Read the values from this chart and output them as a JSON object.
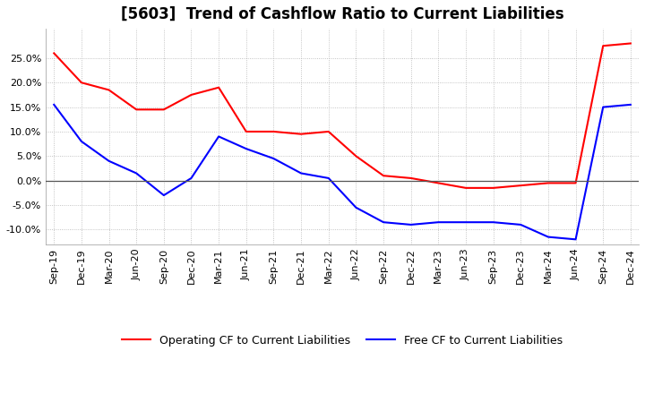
{
  "title": "[5603]  Trend of Cashflow Ratio to Current Liabilities",
  "x_labels": [
    "Sep-19",
    "Dec-19",
    "Mar-20",
    "Jun-20",
    "Sep-20",
    "Dec-20",
    "Mar-21",
    "Jun-21",
    "Sep-21",
    "Dec-21",
    "Mar-22",
    "Jun-22",
    "Sep-22",
    "Dec-22",
    "Mar-23",
    "Jun-23",
    "Sep-23",
    "Dec-23",
    "Mar-24",
    "Jun-24",
    "Sep-24",
    "Dec-24"
  ],
  "operating_cf": [
    26.0,
    20.0,
    18.5,
    14.5,
    14.5,
    17.5,
    19.0,
    10.0,
    10.0,
    9.5,
    10.0,
    5.0,
    1.0,
    0.5,
    -0.5,
    -1.5,
    -1.5,
    -1.0,
    -0.5,
    -0.5,
    27.5,
    28.0
  ],
  "free_cf": [
    15.5,
    8.0,
    4.0,
    1.5,
    -3.0,
    0.5,
    9.0,
    6.5,
    4.5,
    1.5,
    0.5,
    -5.5,
    -8.5,
    -9.0,
    -8.5,
    -8.5,
    -8.5,
    -9.0,
    -11.5,
    -12.0,
    15.0,
    15.5
  ],
  "ylim": [
    -13.0,
    31.0
  ],
  "yticks": [
    -10.0,
    -5.0,
    0.0,
    5.0,
    10.0,
    15.0,
    20.0,
    25.0
  ],
  "operating_color": "#FF0000",
  "free_color": "#0000FF",
  "background_color": "#FFFFFF",
  "grid_color": "#AAAAAA",
  "zero_line_color": "#555555",
  "title_fontsize": 12,
  "tick_fontsize": 8,
  "legend_fontsize": 9
}
